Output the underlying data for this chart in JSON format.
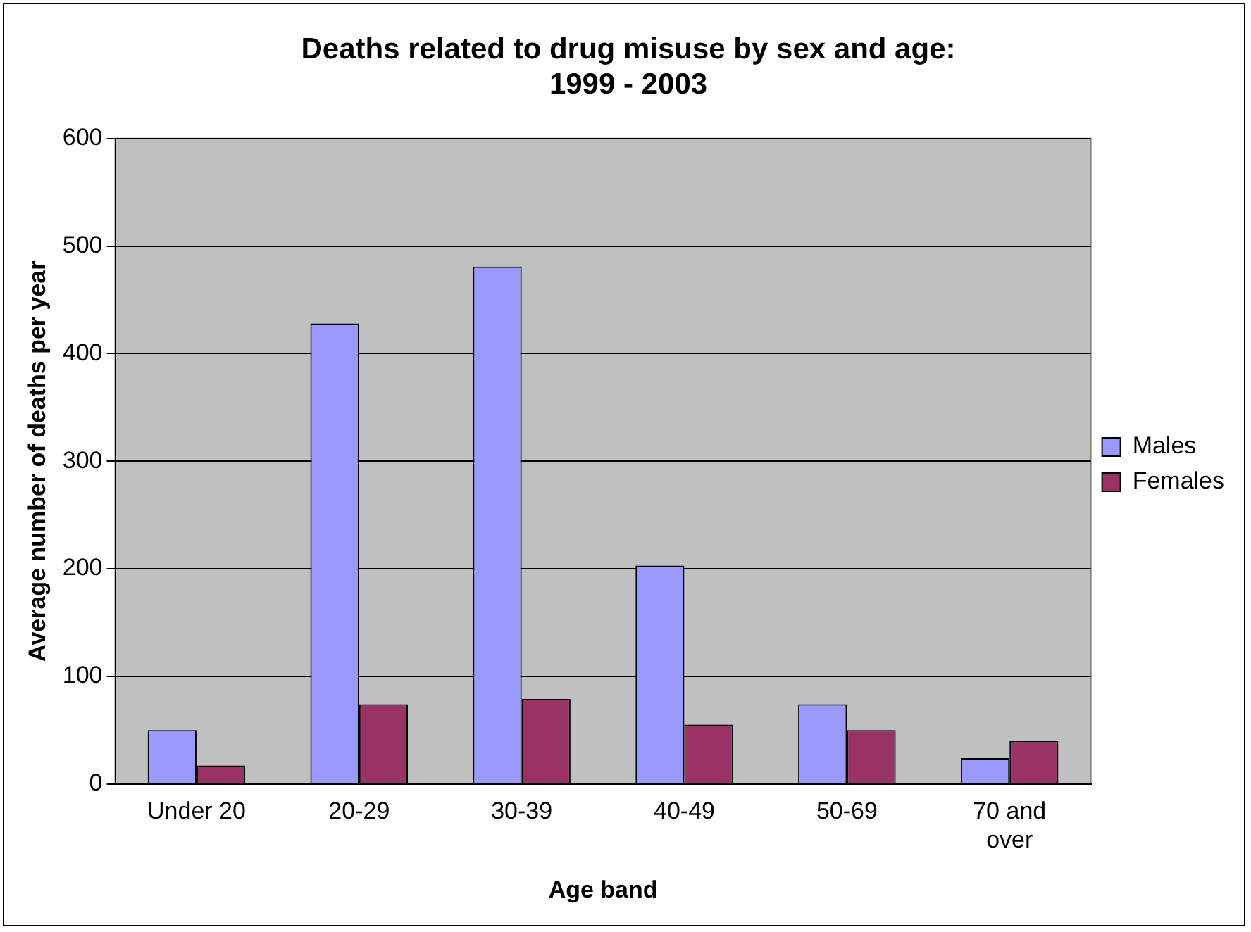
{
  "chart_data": {
    "type": "bar",
    "title": "Deaths related to drug misuse by sex and age:\n1999 - 2003",
    "xlabel": "Age band",
    "ylabel": "Average number of deaths per year",
    "categories": [
      "Under 20",
      "20-29",
      "30-39",
      "40-49",
      "50-69",
      "70 and\nover"
    ],
    "series": [
      {
        "name": "Males",
        "color": "#9999ff",
        "values": [
          50,
          428,
          481,
          203,
          74,
          24
        ]
      },
      {
        "name": "Females",
        "color": "#993366",
        "values": [
          17,
          74,
          79,
          55,
          50,
          40
        ]
      }
    ],
    "ylim": [
      0,
      600
    ],
    "yticks": [
      0,
      100,
      200,
      300,
      400,
      500,
      600
    ],
    "grid": "y",
    "legend": "right"
  }
}
